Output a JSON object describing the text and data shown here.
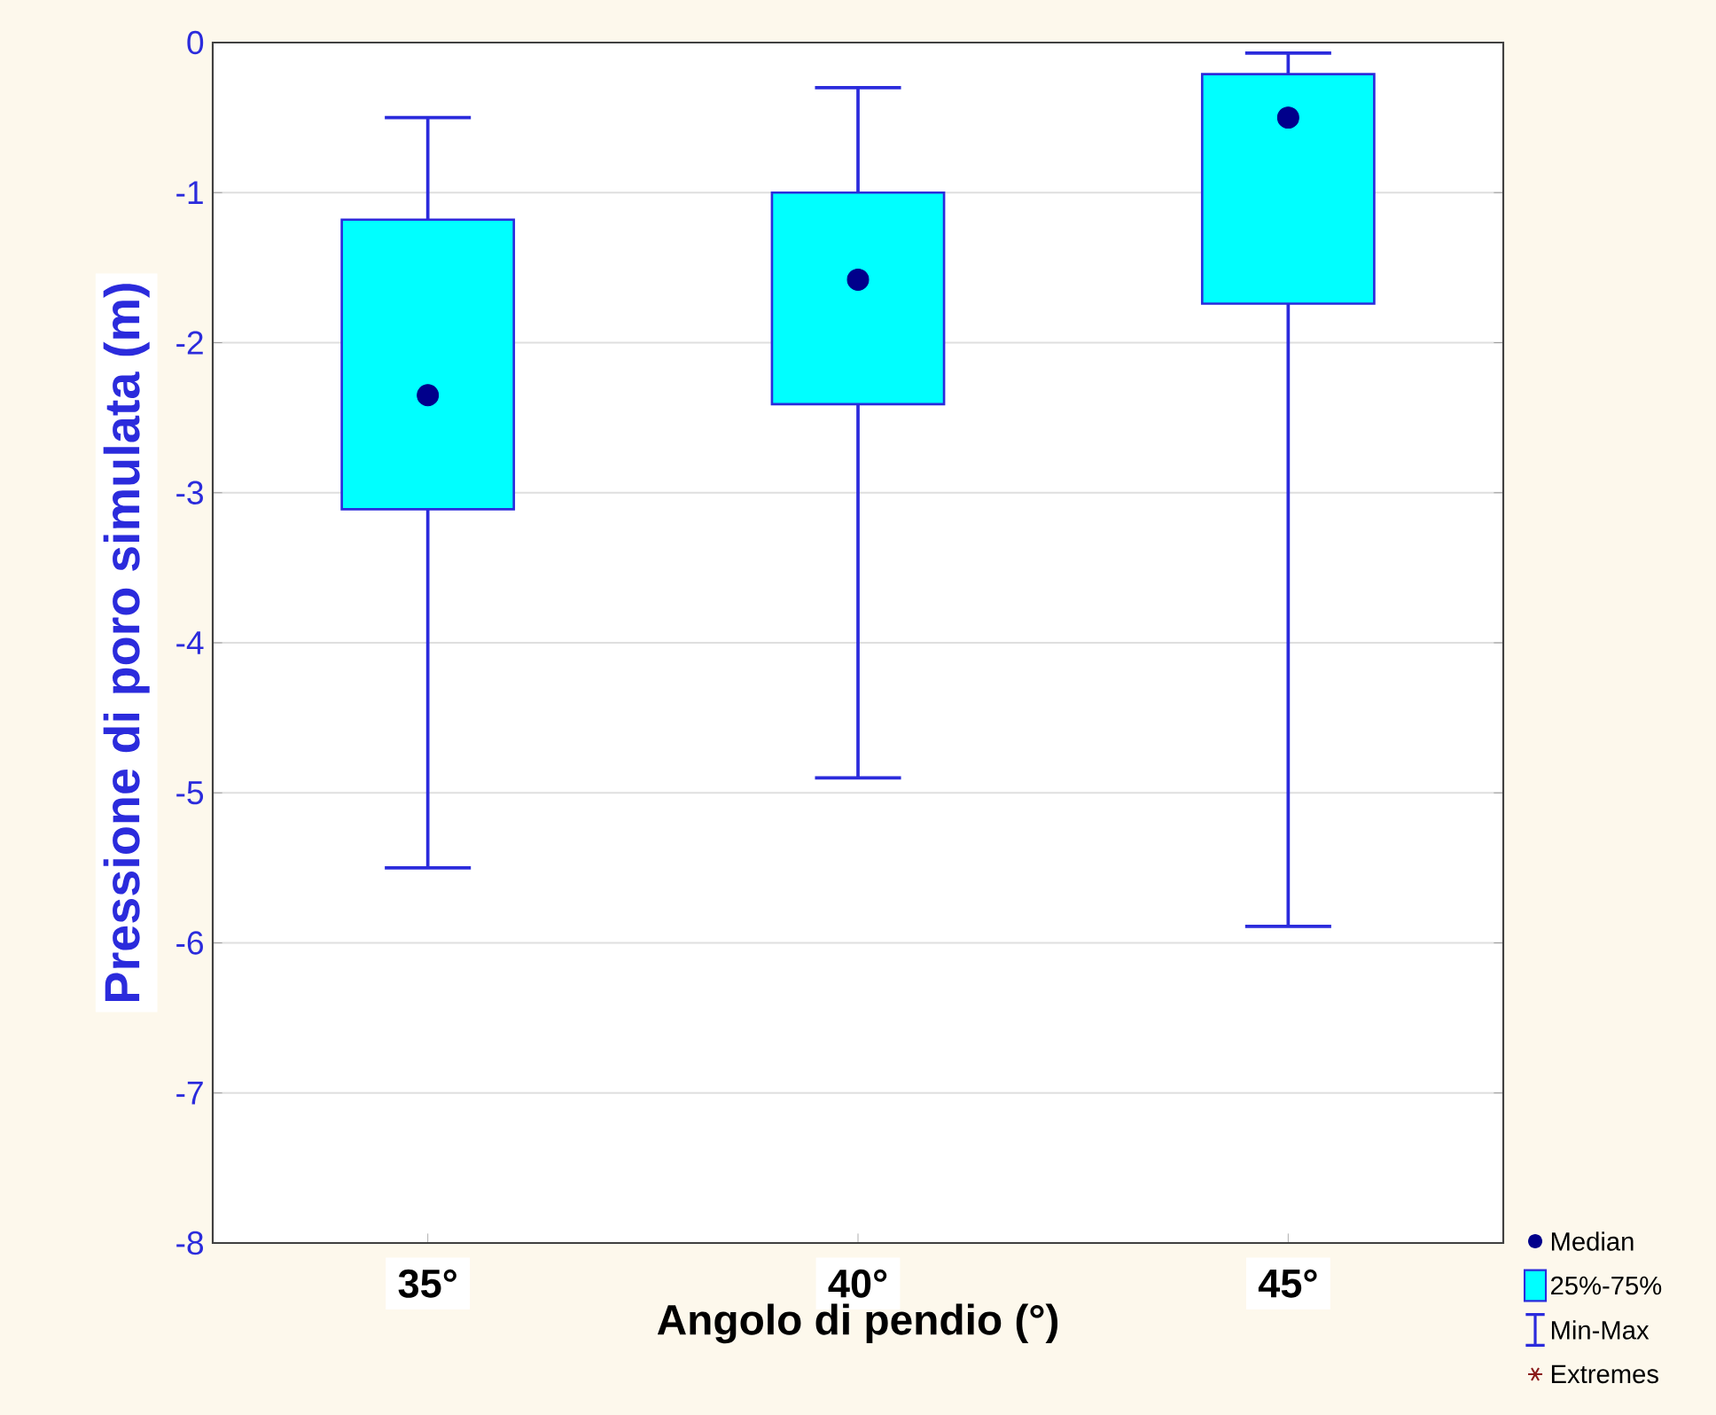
{
  "chart_data": {
    "type": "box",
    "xlabel": "Angolo di pendio (°)",
    "ylabel": "Pressione di poro simulata (m)",
    "categories": [
      "35°",
      "40°",
      "45°"
    ],
    "boxes": [
      {
        "low": -5.5,
        "q1": -3.11,
        "median": -2.35,
        "q3": -1.18,
        "high": -0.5
      },
      {
        "low": -4.9,
        "q1": -2.41,
        "median": -1.58,
        "q3": -1.0,
        "high": -0.3
      },
      {
        "low": -5.89,
        "q1": -1.74,
        "median": -0.5,
        "q3": -0.21,
        "high": -0.07
      }
    ],
    "ylim": [
      -8,
      0
    ],
    "yticks": [
      -8,
      -7,
      -6,
      -5,
      -4,
      -3,
      -2,
      -1,
      0
    ],
    "grid": "y",
    "colors": [
      "#00ffff",
      "#00ffff",
      "#00ffff"
    ],
    "annotations": [
      "Median",
      "25%-75%",
      "Min-Max",
      "Extremes"
    ]
  }
}
